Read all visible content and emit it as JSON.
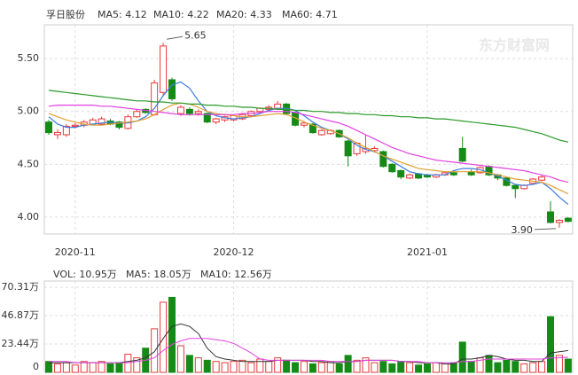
{
  "chart_data": [
    {
      "type": "candlestick",
      "title": "孚日股份",
      "watermark": "东方财富网",
      "categories": [
        null,
        null,
        null,
        "2020-11",
        null,
        null,
        null,
        null,
        null,
        null,
        null,
        null,
        null,
        null,
        null,
        null,
        null,
        null,
        null,
        null,
        null,
        "2020-12",
        null,
        null,
        null,
        null,
        null,
        null,
        null,
        null,
        null,
        null,
        null,
        null,
        null,
        null,
        null,
        null,
        null,
        null,
        null,
        null,
        null,
        "2021-01",
        null,
        null,
        null,
        null,
        null,
        null,
        null,
        null,
        null,
        null,
        null,
        null,
        null,
        null,
        null,
        null
      ],
      "open": [
        4.9,
        4.78,
        4.78,
        4.86,
        4.87,
        4.88,
        4.88,
        4.91,
        4.9,
        4.84,
        4.95,
        5.02,
        4.97,
        5.18,
        5.3,
        4.98,
        5.02,
        4.98,
        4.98,
        4.9,
        4.92,
        4.92,
        4.93,
        4.96,
        5.0,
        5.02,
        5.03,
        5.07,
        4.99,
        4.87,
        4.88,
        4.78,
        4.79,
        4.82,
        4.72,
        4.6,
        4.62,
        4.63,
        4.62,
        4.5,
        4.44,
        4.37,
        4.41,
        4.4,
        4.38,
        4.4,
        4.42,
        4.65,
        4.43,
        4.42,
        4.48,
        4.4,
        4.37,
        4.3,
        4.27,
        4.32,
        4.35,
        4.05,
        3.95,
        3.99
      ],
      "high": [
        4.92,
        4.83,
        4.88,
        4.89,
        4.92,
        4.94,
        4.95,
        4.93,
        4.91,
        4.97,
        5.02,
        5.03,
        5.3,
        5.65,
        5.32,
        5.06,
        5.04,
        5.02,
        4.99,
        4.94,
        4.96,
        4.97,
        4.98,
        5.01,
        5.04,
        5.06,
        5.1,
        5.08,
        5.0,
        4.91,
        4.89,
        4.83,
        4.83,
        4.83,
        4.73,
        4.71,
        4.78,
        4.67,
        4.63,
        4.51,
        4.45,
        4.41,
        4.42,
        4.41,
        4.41,
        4.43,
        4.43,
        4.76,
        4.45,
        4.48,
        4.49,
        4.41,
        4.38,
        4.31,
        4.31,
        4.37,
        4.4,
        4.15,
        3.98,
        4.0
      ],
      "low": [
        4.78,
        4.74,
        4.76,
        4.84,
        4.85,
        4.87,
        4.87,
        4.87,
        4.83,
        4.83,
        4.94,
        4.98,
        4.96,
        5.15,
        5.1,
        4.96,
        4.96,
        4.96,
        4.89,
        4.88,
        4.9,
        4.91,
        4.92,
        4.95,
        4.98,
        5.0,
        5.02,
        4.97,
        4.86,
        4.85,
        4.79,
        4.77,
        4.78,
        4.75,
        4.48,
        4.58,
        4.6,
        4.61,
        4.47,
        4.42,
        4.36,
        4.36,
        4.36,
        4.37,
        4.37,
        4.39,
        4.39,
        4.52,
        4.39,
        4.41,
        4.39,
        4.35,
        4.29,
        4.18,
        4.26,
        4.31,
        4.34,
        3.94,
        3.9,
        3.95
      ],
      "close": [
        4.8,
        4.8,
        4.86,
        4.87,
        4.9,
        4.92,
        4.93,
        4.88,
        4.85,
        4.95,
        5.0,
        4.99,
        5.27,
        5.62,
        5.12,
        5.04,
        4.98,
        5.0,
        4.9,
        4.93,
        4.95,
        4.96,
        4.97,
        5.0,
        5.03,
        5.04,
        5.07,
        4.98,
        4.87,
        4.89,
        4.8,
        4.82,
        4.82,
        4.76,
        4.58,
        4.7,
        4.65,
        4.65,
        4.48,
        4.43,
        4.38,
        4.4,
        4.37,
        4.38,
        4.4,
        4.42,
        4.4,
        4.53,
        4.4,
        4.47,
        4.4,
        4.37,
        4.3,
        4.27,
        4.3,
        4.36,
        4.38,
        3.95,
        3.97,
        3.96
      ],
      "up_color": "#e8393a",
      "down_color": "#168a16",
      "series": [
        {
          "name": "MA5: 4.12",
          "color": "#3c7de0",
          "values": [
            4.95,
            4.88,
            4.85,
            4.85,
            4.87,
            4.88,
            4.89,
            4.9,
            4.89,
            4.89,
            4.91,
            4.95,
            5.03,
            5.15,
            5.25,
            5.28,
            5.22,
            5.1,
            5.0,
            4.96,
            4.94,
            4.93,
            4.94,
            4.95,
            4.98,
            5.01,
            5.03,
            5.03,
            5.01,
            4.96,
            4.9,
            4.85,
            4.82,
            4.79,
            4.74,
            4.68,
            4.64,
            4.62,
            4.58,
            4.53,
            4.48,
            4.43,
            4.41,
            4.4,
            4.4,
            4.4,
            4.44,
            4.46,
            4.46,
            4.45,
            4.42,
            4.39,
            4.35,
            4.31,
            4.3,
            4.31,
            4.33,
            4.27,
            4.19,
            4.12
          ]
        },
        {
          "name": "MA10: 4.22",
          "color": "#e0a030",
          "values": [
            4.98,
            4.95,
            4.92,
            4.9,
            4.88,
            4.87,
            4.87,
            4.88,
            4.89,
            4.9,
            4.91,
            4.93,
            4.97,
            5.02,
            5.06,
            5.08,
            5.07,
            5.04,
            5.0,
            4.98,
            4.97,
            4.96,
            4.95,
            4.95,
            4.96,
            4.97,
            4.98,
            4.97,
            4.94,
            4.9,
            4.87,
            4.84,
            4.82,
            4.79,
            4.75,
            4.7,
            4.66,
            4.62,
            4.58,
            4.55,
            4.52,
            4.49,
            4.46,
            4.45,
            4.44,
            4.43,
            4.43,
            4.43,
            4.43,
            4.43,
            4.42,
            4.4,
            4.38,
            4.36,
            4.35,
            4.34,
            4.33,
            4.3,
            4.26,
            4.22
          ]
        },
        {
          "name": "MA20: 4.33",
          "color": "#e040e0",
          "values": [
            5.05,
            5.06,
            5.06,
            5.06,
            5.06,
            5.06,
            5.05,
            5.05,
            5.04,
            5.03,
            5.02,
            5.01,
            5.0,
            4.99,
            4.98,
            4.97,
            4.97,
            4.97,
            4.97,
            4.97,
            4.97,
            4.97,
            4.98,
            4.98,
            4.99,
            5.0,
            5.0,
            5.0,
            4.99,
            4.97,
            4.95,
            4.93,
            4.91,
            4.89,
            4.86,
            4.82,
            4.78,
            4.74,
            4.7,
            4.66,
            4.63,
            4.6,
            4.58,
            4.56,
            4.54,
            4.53,
            4.52,
            4.51,
            4.5,
            4.49,
            4.48,
            4.47,
            4.46,
            4.45,
            4.44,
            4.42,
            4.4,
            4.38,
            4.35,
            4.33
          ]
        },
        {
          "name": "MA60: 4.71",
          "color": "#2a9a2a",
          "values": [
            5.2,
            5.19,
            5.18,
            5.17,
            5.16,
            5.15,
            5.14,
            5.13,
            5.12,
            5.11,
            5.1,
            5.1,
            5.09,
            5.09,
            5.08,
            5.08,
            5.07,
            5.07,
            5.06,
            5.06,
            5.05,
            5.05,
            5.04,
            5.04,
            5.03,
            5.03,
            5.02,
            5.02,
            5.01,
            5.01,
            5.0,
            5.0,
            4.99,
            4.99,
            4.98,
            4.98,
            4.97,
            4.97,
            4.96,
            4.96,
            4.95,
            4.95,
            4.94,
            4.94,
            4.93,
            4.93,
            4.92,
            4.91,
            4.9,
            4.89,
            4.88,
            4.87,
            4.86,
            4.85,
            4.83,
            4.81,
            4.79,
            4.76,
            4.73,
            4.71
          ]
        }
      ],
      "annotations": [
        "5.65",
        "3.90"
      ],
      "ylim": [
        3.84,
        5.82
      ],
      "yticks": [
        {
          "value": 4,
          "label": "4.00"
        },
        {
          "value": 4.5,
          "label": "4.50"
        },
        {
          "value": 5,
          "label": "5.00"
        },
        {
          "value": 5.5,
          "label": "5.50"
        }
      ],
      "grid": true
    },
    {
      "type": "bar",
      "name": "VOL: 10.95万",
      "color": "#e040e0",
      "values": [
        9,
        7,
        8,
        6,
        9,
        8,
        9,
        7,
        8,
        15,
        12,
        20,
        36,
        58,
        62,
        22,
        14,
        12,
        10,
        9,
        8,
        9,
        10,
        8,
        11,
        9,
        12,
        10,
        8,
        9,
        7,
        8,
        9,
        7,
        14,
        10,
        12,
        8,
        9,
        7,
        9,
        8,
        6,
        7,
        8,
        7,
        8,
        25,
        9,
        12,
        14,
        8,
        10,
        9,
        7,
        8,
        9,
        46,
        14,
        10.95
      ],
      "series": [
        {
          "name": "MA5: 18.05万",
          "color": "#333333",
          "values": [
            8,
            8,
            8,
            8,
            8,
            8,
            8,
            8,
            8,
            9,
            10,
            12,
            17,
            28,
            38,
            40,
            38,
            32,
            20,
            13,
            11,
            10,
            9,
            9,
            9,
            9,
            10,
            10,
            10,
            10,
            9,
            9,
            8,
            8,
            9,
            9,
            10,
            10,
            10,
            10,
            9,
            9,
            8,
            8,
            8,
            7,
            7,
            11,
            11,
            12,
            14,
            13,
            11,
            10,
            10,
            9,
            9,
            16,
            17,
            18.05
          ]
        },
        {
          "name": "MA10: 12.56万",
          "color": "#e040e0",
          "values": [
            9,
            9,
            9,
            8,
            8,
            8,
            8,
            8,
            8,
            8,
            9,
            10,
            12,
            18,
            23,
            26,
            28,
            28,
            28,
            27,
            26,
            24,
            20,
            16,
            11,
            10,
            10,
            10,
            10,
            10,
            10,
            10,
            9,
            9,
            9,
            9,
            10,
            10,
            10,
            10,
            9,
            9,
            9,
            8,
            8,
            8,
            8,
            9,
            9,
            10,
            11,
            11,
            11,
            11,
            11,
            11,
            11,
            12,
            12,
            12.56
          ]
        }
      ],
      "ylim": [
        0,
        75.5
      ],
      "yticks": [
        0,
        {
          "value": 23.44,
          "label": "23.44万"
        },
        {
          "value": 46.87,
          "label": "46.87万"
        },
        {
          "value": 70.31,
          "label": "70.31万"
        }
      ],
      "grid": true
    }
  ]
}
